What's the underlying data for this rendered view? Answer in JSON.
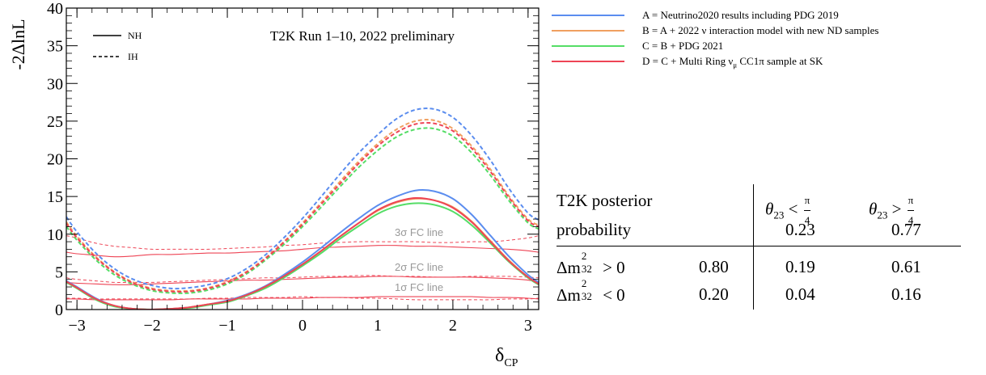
{
  "chart_data": {
    "type": "line",
    "title": "T2K Run 1–10, 2022 preliminary",
    "xlabel": "δ",
    "xlabel_sub": "CP",
    "ylabel": "-2ΔlnL",
    "xlim": [
      -3.14159,
      3.14159
    ],
    "ylim": [
      0,
      40
    ],
    "x_ticks": [
      "−3",
      "−2",
      "−1",
      "0",
      "1",
      "2",
      "3"
    ],
    "y_ticks": [
      "0",
      "5",
      "10",
      "15",
      "20",
      "25",
      "30",
      "35",
      "40"
    ],
    "style_legend": [
      {
        "label": "NH",
        "dash": "solid"
      },
      {
        "label": "IH",
        "dash": "dashed"
      }
    ],
    "x": [
      -3.14,
      -3.0,
      -2.75,
      -2.5,
      -2.25,
      -2.0,
      -1.75,
      -1.5,
      -1.25,
      -1.0,
      -0.75,
      -0.5,
      -0.25,
      0.0,
      0.25,
      0.5,
      0.75,
      1.0,
      1.25,
      1.5,
      1.75,
      2.0,
      2.25,
      2.5,
      2.75,
      3.0,
      3.14
    ],
    "series": [
      {
        "name": "A = Neutrino2020 results including PDG 2019",
        "color": "#5b8def",
        "hierarchy": "NH",
        "values": [
          3.8,
          3.0,
          1.5,
          0.5,
          0.1,
          0.0,
          0.1,
          0.3,
          0.7,
          1.2,
          2.0,
          3.1,
          4.6,
          6.3,
          8.2,
          10.2,
          12.1,
          13.8,
          15.0,
          15.8,
          15.7,
          14.7,
          12.6,
          9.8,
          7.0,
          4.6,
          3.6
        ]
      },
      {
        "name": "B = A + 2022 ν interaction model with new ND samples",
        "color": "#f0a060",
        "hierarchy": "NH",
        "values": [
          3.7,
          2.9,
          1.4,
          0.5,
          0.1,
          0.0,
          0.1,
          0.3,
          0.7,
          1.1,
          1.9,
          3.0,
          4.4,
          6.0,
          7.8,
          9.7,
          11.5,
          13.1,
          14.2,
          14.7,
          14.5,
          13.6,
          11.7,
          9.1,
          6.5,
          4.3,
          3.4
        ]
      },
      {
        "name": "C = B + PDG 2021",
        "color": "#55dd66",
        "hierarchy": "NH",
        "values": [
          3.6,
          2.8,
          1.3,
          0.4,
          0.1,
          0.0,
          0.1,
          0.2,
          0.6,
          1.0,
          1.8,
          2.8,
          4.2,
          5.8,
          7.5,
          9.4,
          11.1,
          12.7,
          13.7,
          14.1,
          13.9,
          13.0,
          11.2,
          8.8,
          6.3,
          4.2,
          3.3
        ]
      },
      {
        "name": "D = C + Multi Ring ν CC1π sample at SK",
        "color": "#ee4455",
        "hierarchy": "NH",
        "values": [
          3.7,
          2.9,
          1.4,
          0.5,
          0.1,
          0.0,
          0.1,
          0.3,
          0.7,
          1.1,
          1.9,
          3.0,
          4.4,
          6.0,
          7.8,
          9.7,
          11.5,
          13.2,
          14.3,
          14.8,
          14.5,
          13.5,
          11.6,
          9.0,
          6.4,
          4.3,
          3.4
        ]
      },
      {
        "name": "A IH",
        "color": "#5b8def",
        "hierarchy": "IH",
        "values": [
          12.3,
          10.3,
          7.5,
          5.4,
          4.0,
          3.2,
          2.8,
          2.9,
          3.3,
          4.1,
          5.4,
          7.2,
          9.5,
          12.1,
          15.0,
          18.0,
          20.8,
          23.2,
          25.3,
          26.5,
          26.6,
          25.5,
          23.1,
          19.8,
          16.0,
          12.8,
          11.9
        ]
      },
      {
        "name": "B IH",
        "color": "#f0a060",
        "hierarchy": "IH",
        "values": [
          11.6,
          9.7,
          7.0,
          5.0,
          3.6,
          2.8,
          2.5,
          2.5,
          2.9,
          3.7,
          5.0,
          6.8,
          9.0,
          11.5,
          14.2,
          17.0,
          19.7,
          22.0,
          23.9,
          25.0,
          25.1,
          24.0,
          21.7,
          18.6,
          15.0,
          12.0,
          11.2
        ]
      },
      {
        "name": "C IH",
        "color": "#55dd66",
        "hierarchy": "IH",
        "values": [
          11.0,
          9.2,
          6.6,
          4.6,
          3.3,
          2.5,
          2.2,
          2.2,
          2.6,
          3.4,
          4.7,
          6.5,
          8.6,
          11.0,
          13.6,
          16.3,
          18.9,
          21.1,
          22.9,
          23.9,
          24.0,
          23.0,
          20.8,
          17.8,
          14.4,
          11.5,
          10.7
        ]
      },
      {
        "name": "D IH",
        "color": "#ee4455",
        "hierarchy": "IH",
        "values": [
          11.4,
          9.5,
          6.9,
          4.9,
          3.5,
          2.7,
          2.4,
          2.4,
          2.8,
          3.6,
          4.9,
          6.7,
          8.9,
          11.3,
          14.0,
          16.7,
          19.4,
          21.7,
          23.5,
          24.6,
          24.7,
          23.7,
          21.4,
          18.3,
          14.8,
          11.8,
          11.0
        ]
      }
    ],
    "fc_lines": [
      {
        "label": "3σ FC line",
        "label_x": 1.55,
        "color": "#ee4455",
        "nh": [
          7.6,
          7.4,
          7.2,
          7.0,
          7.1,
          7.3,
          7.3,
          7.4,
          7.5,
          7.5,
          7.6,
          7.7,
          7.8,
          8.0,
          8.2,
          8.3,
          8.4,
          8.5,
          8.5,
          8.4,
          8.4,
          8.3,
          8.2,
          8.1,
          8.0,
          7.8,
          7.6
        ],
        "ih": [
          9.8,
          9.5,
          8.8,
          8.4,
          8.2,
          8.0,
          8.0,
          8.0,
          8.0,
          8.1,
          8.2,
          8.3,
          8.5,
          8.6,
          8.8,
          8.9,
          9.0,
          9.0,
          9.0,
          9.0,
          8.9,
          8.9,
          9.0,
          9.0,
          9.2,
          9.5,
          9.8
        ]
      },
      {
        "label": "2σ FC line",
        "label_x": 1.55,
        "color": "#ee4455",
        "nh": [
          3.6,
          3.5,
          3.4,
          3.3,
          3.3,
          3.4,
          3.5,
          3.6,
          3.7,
          3.8,
          3.9,
          3.9,
          4.0,
          4.1,
          4.2,
          4.3,
          4.3,
          4.4,
          4.4,
          4.3,
          4.3,
          4.3,
          4.3,
          4.2,
          4.1,
          3.9,
          3.6
        ],
        "ih": [
          4.2,
          4.0,
          3.8,
          3.6,
          3.6,
          3.6,
          3.7,
          3.8,
          3.9,
          4.0,
          4.1,
          4.2,
          4.2,
          4.3,
          4.4,
          4.4,
          4.5,
          4.5,
          4.4,
          4.4,
          4.3,
          4.3,
          4.4,
          4.4,
          4.4,
          4.3,
          4.2
        ]
      },
      {
        "label": "1σ FC line",
        "label_x": 1.55,
        "color": "#ee4455",
        "nh": [
          1.4,
          1.4,
          1.3,
          1.3,
          1.3,
          1.3,
          1.3,
          1.4,
          1.4,
          1.4,
          1.4,
          1.5,
          1.5,
          1.5,
          1.6,
          1.6,
          1.6,
          1.7,
          1.7,
          1.7,
          1.7,
          1.7,
          1.7,
          1.6,
          1.6,
          1.5,
          1.4
        ],
        "ih": [
          1.5,
          1.5,
          1.4,
          1.4,
          1.4,
          1.4,
          1.4,
          1.4,
          1.5,
          1.5,
          1.6,
          1.6,
          1.6,
          1.7,
          1.6,
          1.6,
          1.5,
          1.5,
          1.4,
          1.3,
          1.3,
          1.3,
          1.3,
          1.3,
          1.4,
          1.4,
          1.5
        ]
      }
    ]
  },
  "legend": [
    {
      "text": "A = Neutrino2020 results including PDG 2019",
      "color": "#5b8def"
    },
    {
      "text": "B = A + 2022 ν interaction model with new ND samples",
      "color": "#f0a060"
    },
    {
      "text": "C = B + PDG 2021",
      "color": "#55dd66"
    },
    {
      "text": "D = C + Multi Ring ν",
      "sub": "μ",
      "rest": " CC1π sample at SK",
      "color": "#ee4455"
    }
  ],
  "table": {
    "header_line1": "T2K posterior",
    "header_line2": "probability",
    "col1_theta": "θ",
    "col1_sub": "23",
    "col1_op": " < ",
    "col2_theta": "θ",
    "col2_sub": "23",
    "col2_op": " > ",
    "frac_num": "π",
    "frac_den": "4",
    "col1_total": "0.23",
    "col2_total": "0.77",
    "row1_dm": "Δm",
    "row1_sup": "2",
    "row1_sub": "32",
    "row1_op": " > 0",
    "row1_total": "0.80",
    "row1_c1": "0.19",
    "row1_c2": "0.61",
    "row2_dm": "Δm",
    "row2_sup": "2",
    "row2_sub": "32",
    "row2_op": " < 0",
    "row2_total": "0.20",
    "row2_c1": "0.04",
    "row2_c2": "0.16"
  }
}
